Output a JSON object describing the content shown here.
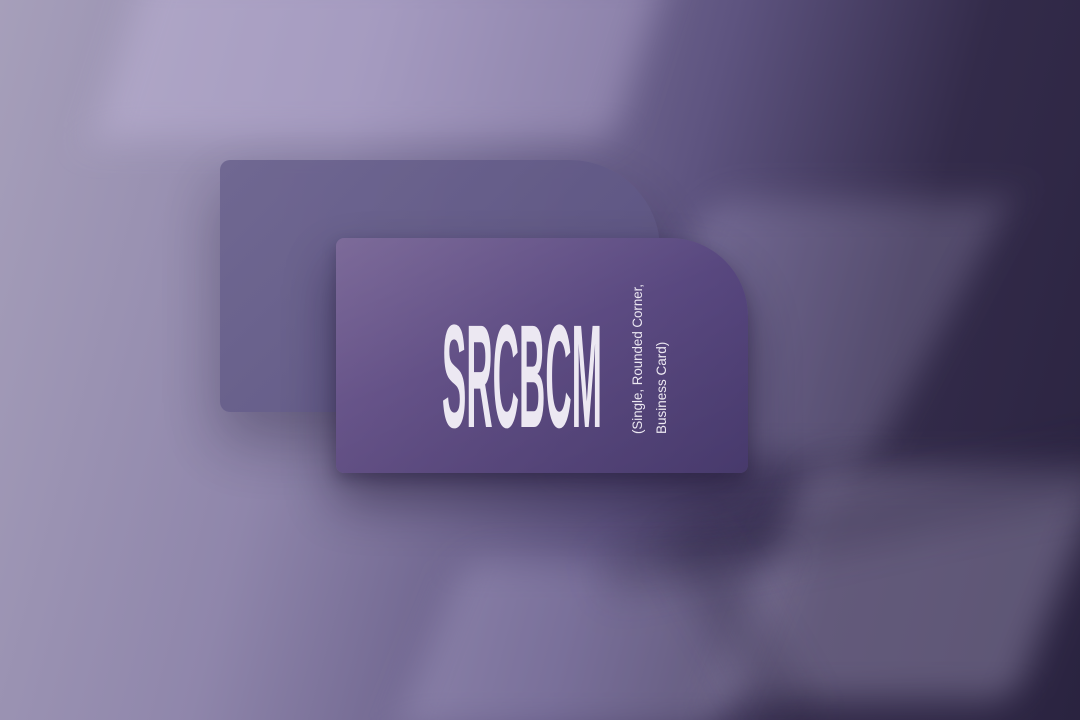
{
  "card": {
    "logo_text": "SRCBCM",
    "subtitle_line1": "(Single, Rounded Corner,",
    "subtitle_line2": "Business Card)"
  },
  "colors": {
    "card_front": "#5f4d84",
    "card_back": "#5a5280",
    "text": "#ece8f2"
  }
}
